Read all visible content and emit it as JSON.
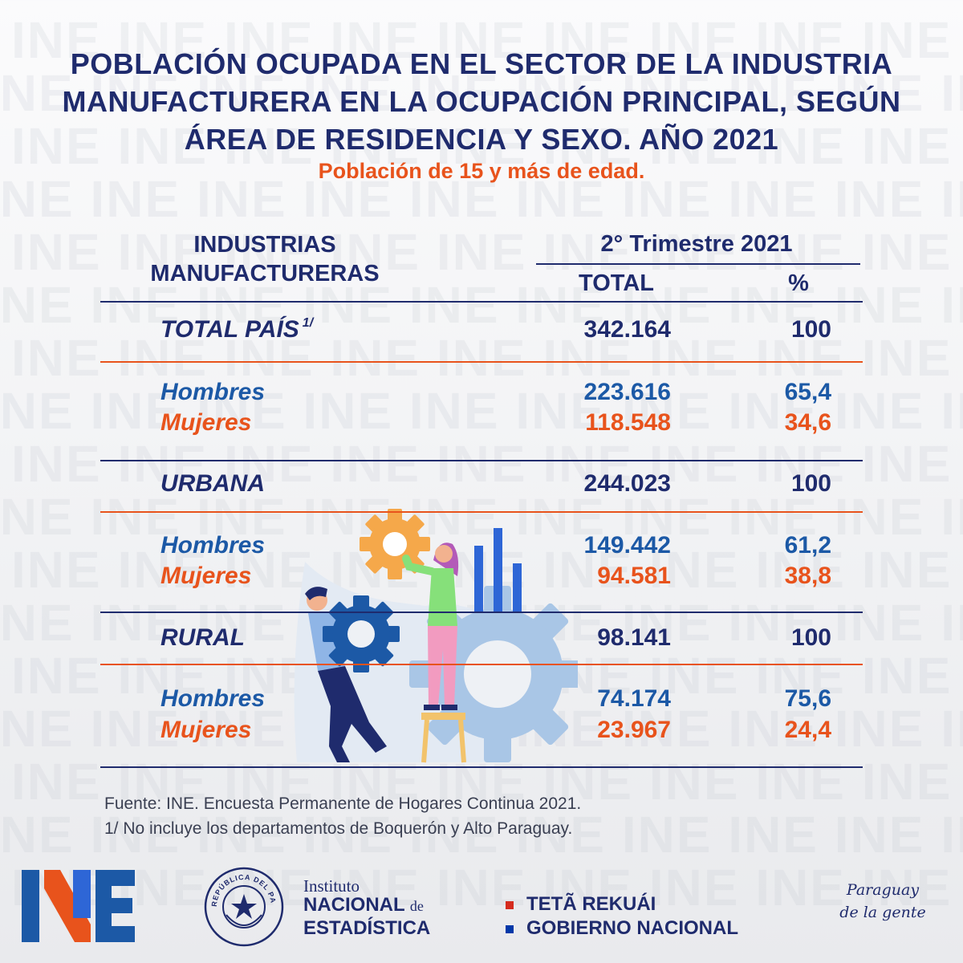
{
  "watermark_text": "INE INE INE INE INE INE INE INE INE INE",
  "title": {
    "line1": "POBLACIÓN OCUPADA EN EL  SECTOR DE LA INDUSTRIA",
    "line2": "MANUFACTURERA EN LA OCUPACIÓN PRINCIPAL, SEGÚN",
    "line3": "ÁREA DE RESIDENCIA Y SEXO. AÑO 2021"
  },
  "subtitle": "Población de 15 y más de edad.",
  "table": {
    "header": {
      "col_line1": "INDUSTRIAS",
      "col_line2": "MANUFACTURERAS",
      "period": "2° Trimestre 2021",
      "total": "TOTAL",
      "percent": "%"
    },
    "rows": [
      {
        "label": "TOTAL PAÍS",
        "note": "1/",
        "total": "342.164",
        "percent": "100"
      },
      {
        "label": "Hombres",
        "total": "223.616",
        "percent": "65,4"
      },
      {
        "label": "Mujeres",
        "total": "118.548",
        "percent": "34,6"
      },
      {
        "label": "URBANA",
        "total": "244.023",
        "percent": "100"
      },
      {
        "label": "Hombres",
        "total": "149.442",
        "percent": "61,2"
      },
      {
        "label": "Mujeres",
        "total": "94.581",
        "percent": "38,8"
      },
      {
        "label": "RURAL",
        "total": "98.141",
        "percent": "100"
      },
      {
        "label": "Hombres",
        "total": "74.174",
        "percent": "75,6"
      },
      {
        "label": "Mujeres",
        "total": "23.967",
        "percent": "24,4"
      }
    ]
  },
  "footnotes": {
    "source": "Fuente: INE. Encuesta Permanente de Hogares Continua 2021.",
    "note": "1/ No incluye los departamentos de Boquerón y Alto Paraguay."
  },
  "footer": {
    "seal_text": "REPÚBLICA DEL PARAGUAY",
    "institute": {
      "line1": "Instituto",
      "line2": "NACIONAL",
      "de": "de",
      "line3": "ESTADÍSTICA"
    },
    "government": {
      "line1": "TETÃ REKUÁI",
      "line2": "GOBIERNO NACIONAL"
    },
    "slogan": {
      "line1": "Paraguay",
      "line2": "de la gente"
    }
  },
  "colors": {
    "navy": "#1f2b6d",
    "blue": "#1c59a6",
    "orange": "#e8531c",
    "flag_red": "#d52b1e",
    "flag_blue": "#0038a8"
  }
}
